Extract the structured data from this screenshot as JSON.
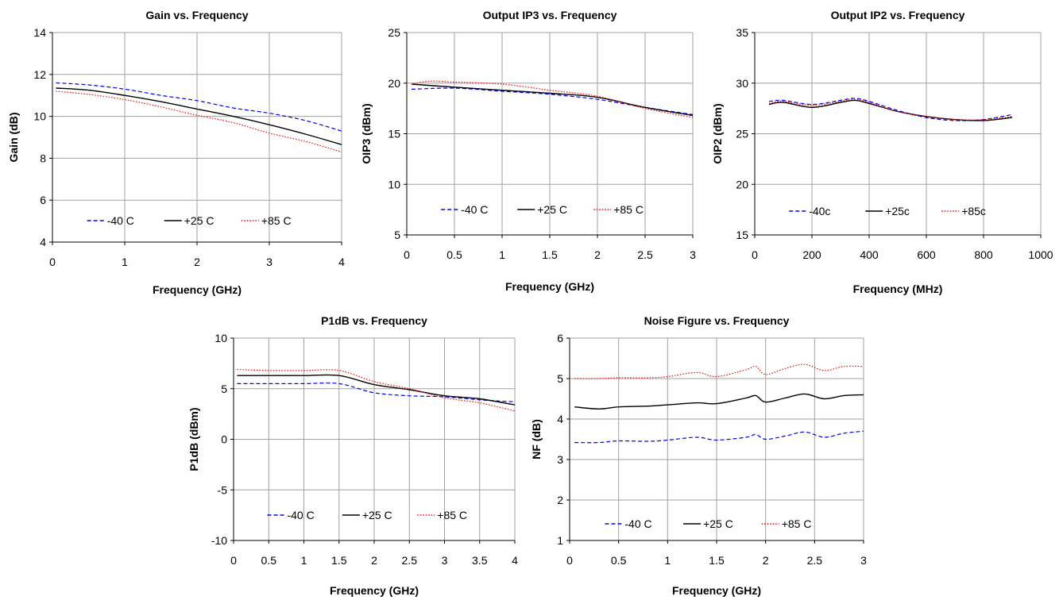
{
  "chart_data": [
    {
      "type": "line",
      "title": "Gain vs. Frequency",
      "xlabel": "Frequency (GHz)",
      "ylabel": "Gain (dB)",
      "xlim": [
        0,
        4
      ],
      "ylim": [
        4,
        14
      ],
      "xticks": [
        0,
        1,
        2,
        3,
        4
      ],
      "yticks": [
        4,
        6,
        8,
        10,
        12,
        14
      ],
      "grid": true,
      "legend": "bottom-inside",
      "series": [
        {
          "name": "-40 C",
          "color": "#0000ff",
          "dash": "dashed",
          "x": [
            0.05,
            0.5,
            1.0,
            1.5,
            2.0,
            2.5,
            3.0,
            3.5,
            4.0
          ],
          "y": [
            11.6,
            11.5,
            11.3,
            11.0,
            10.75,
            10.4,
            10.15,
            9.8,
            9.3
          ]
        },
        {
          "name": "+25 C",
          "color": "#000000",
          "dash": "solid",
          "x": [
            0.05,
            0.5,
            1.0,
            1.5,
            2.0,
            2.5,
            3.0,
            3.5,
            4.0
          ],
          "y": [
            11.35,
            11.25,
            11.0,
            10.7,
            10.35,
            10.0,
            9.6,
            9.15,
            8.65
          ]
        },
        {
          "name": "+85 C",
          "color": "#ff0000",
          "dash": "dotted",
          "x": [
            0.05,
            0.5,
            1.0,
            1.5,
            2.0,
            2.5,
            3.0,
            3.5,
            4.0
          ],
          "y": [
            11.2,
            11.05,
            10.8,
            10.45,
            10.05,
            9.7,
            9.2,
            8.8,
            8.3
          ]
        }
      ]
    },
    {
      "type": "line",
      "title": "Output IP3 vs. Frequency",
      "xlabel": "Frequency (GHz)",
      "ylabel": "OIP3 (dBm)",
      "xlim": [
        0,
        3
      ],
      "ylim": [
        5,
        25
      ],
      "xticks": [
        0,
        0.5,
        1,
        1.5,
        2,
        2.5,
        3
      ],
      "yticks": [
        5,
        10,
        15,
        20,
        25
      ],
      "grid": true,
      "legend": "bottom-inside",
      "series": [
        {
          "name": "-40 C",
          "color": "#0000ff",
          "dash": "dashed",
          "x": [
            0.05,
            0.5,
            1.0,
            1.5,
            2.0,
            2.5,
            3.0
          ],
          "y": [
            19.4,
            19.5,
            19.2,
            18.9,
            18.4,
            17.6,
            16.9
          ]
        },
        {
          "name": "+25 C",
          "color": "#000000",
          "dash": "solid",
          "x": [
            0.05,
            0.5,
            1.0,
            1.5,
            2.0,
            2.5,
            3.0
          ],
          "y": [
            19.9,
            19.6,
            19.3,
            19.0,
            18.6,
            17.6,
            16.8
          ]
        },
        {
          "name": "+85 C",
          "color": "#ff0000",
          "dash": "dotted",
          "x": [
            0.05,
            0.25,
            0.5,
            1.0,
            1.5,
            2.0,
            2.5,
            3.0
          ],
          "y": [
            19.9,
            20.2,
            20.1,
            19.9,
            19.3,
            18.7,
            17.5,
            16.6
          ]
        }
      ]
    },
    {
      "type": "line",
      "title": "Output IP2 vs. Frequency",
      "xlabel": "Frequency (MHz)",
      "ylabel": "OIP2 (dBm)",
      "xlim": [
        0,
        1000
      ],
      "ylim": [
        15,
        35
      ],
      "xticks": [
        0,
        200,
        400,
        600,
        800,
        1000
      ],
      "yticks": [
        15,
        20,
        25,
        30,
        35
      ],
      "grid": true,
      "legend": "bottom-inside",
      "series": [
        {
          "name": "-40c",
          "color": "#0000ff",
          "dash": "dashed",
          "x": [
            50,
            100,
            200,
            300,
            350,
            400,
            500,
            600,
            700,
            800,
            900
          ],
          "y": [
            28.2,
            28.3,
            27.9,
            28.3,
            28.5,
            28.2,
            27.3,
            26.6,
            26.3,
            26.4,
            26.9
          ]
        },
        {
          "name": "+25c",
          "color": "#000000",
          "dash": "solid",
          "x": [
            50,
            100,
            200,
            300,
            350,
            400,
            500,
            600,
            700,
            800,
            900
          ],
          "y": [
            27.9,
            28.1,
            27.6,
            28.1,
            28.3,
            28.0,
            27.2,
            26.7,
            26.4,
            26.3,
            26.6
          ]
        },
        {
          "name": "+85c",
          "color": "#ff0000",
          "dash": "dotted",
          "x": [
            50,
            100,
            200,
            300,
            350,
            400,
            500,
            600,
            700,
            800,
            900
          ],
          "y": [
            28.0,
            28.2,
            27.8,
            28.2,
            28.4,
            28.1,
            27.2,
            26.7,
            26.4,
            26.4,
            26.7
          ]
        }
      ]
    },
    {
      "type": "line",
      "title": "P1dB vs. Frequency",
      "xlabel": "Frequency (GHz)",
      "ylabel": "P1dB (dBm)",
      "xlim": [
        0,
        4
      ],
      "ylim": [
        -10,
        10
      ],
      "xticks": [
        0,
        0.5,
        1,
        1.5,
        2,
        2.5,
        3,
        3.5,
        4
      ],
      "yticks": [
        -10,
        -5,
        0,
        5,
        10
      ],
      "grid": true,
      "legend": "bottom-inside",
      "series": [
        {
          "name": "-40 C",
          "color": "#0000ff",
          "dash": "dashed",
          "x": [
            0.05,
            0.5,
            1.0,
            1.5,
            2.0,
            2.5,
            3.0,
            3.5,
            4.0
          ],
          "y": [
            5.5,
            5.5,
            5.5,
            5.5,
            4.6,
            4.3,
            4.2,
            3.9,
            3.7
          ]
        },
        {
          "name": "+25 C",
          "color": "#000000",
          "dash": "solid",
          "x": [
            0.05,
            0.5,
            1.0,
            1.5,
            2.0,
            2.5,
            3.0,
            3.5,
            4.0
          ],
          "y": [
            6.3,
            6.3,
            6.3,
            6.3,
            5.4,
            4.9,
            4.3,
            4.0,
            3.4
          ]
        },
        {
          "name": "+85 C",
          "color": "#ff0000",
          "dash": "dotted",
          "x": [
            0.05,
            0.5,
            1.0,
            1.5,
            2.0,
            2.5,
            3.0,
            3.5,
            4.0
          ],
          "y": [
            6.9,
            6.8,
            6.8,
            6.8,
            5.7,
            5.0,
            4.1,
            3.6,
            2.8
          ]
        }
      ]
    },
    {
      "type": "line",
      "title": "Noise Figure vs. Frequency",
      "xlabel": "Frequency (GHz)",
      "ylabel": "NF (dB)",
      "xlim": [
        0,
        3
      ],
      "ylim": [
        1,
        6
      ],
      "xticks": [
        0,
        0.5,
        1,
        1.5,
        2,
        2.5,
        3
      ],
      "yticks": [
        1,
        2,
        3,
        4,
        5,
        6
      ],
      "grid": true,
      "legend": "bottom-inside",
      "series": [
        {
          "name": "-40 C",
          "color": "#0000ff",
          "dash": "dashed",
          "x": [
            0.05,
            0.3,
            0.5,
            0.8,
            1.0,
            1.3,
            1.5,
            1.8,
            1.9,
            2.0,
            2.2,
            2.4,
            2.6,
            2.8,
            3.0
          ],
          "y": [
            3.42,
            3.42,
            3.46,
            3.45,
            3.48,
            3.55,
            3.48,
            3.55,
            3.62,
            3.5,
            3.58,
            3.68,
            3.55,
            3.65,
            3.7
          ]
        },
        {
          "name": "+25 C",
          "color": "#000000",
          "dash": "solid",
          "x": [
            0.05,
            0.3,
            0.5,
            0.8,
            1.0,
            1.3,
            1.5,
            1.8,
            1.9,
            2.0,
            2.2,
            2.4,
            2.6,
            2.8,
            3.0
          ],
          "y": [
            4.3,
            4.25,
            4.3,
            4.32,
            4.35,
            4.4,
            4.38,
            4.52,
            4.58,
            4.42,
            4.52,
            4.62,
            4.5,
            4.58,
            4.6
          ]
        },
        {
          "name": "+85 C",
          "color": "#ff0000",
          "dash": "dotted",
          "x": [
            0.05,
            0.3,
            0.5,
            0.8,
            1.0,
            1.3,
            1.5,
            1.8,
            1.9,
            2.0,
            2.2,
            2.4,
            2.6,
            2.8,
            3.0
          ],
          "y": [
            5.0,
            5.0,
            5.02,
            5.02,
            5.05,
            5.15,
            5.05,
            5.22,
            5.3,
            5.1,
            5.25,
            5.35,
            5.2,
            5.3,
            5.3
          ]
        }
      ]
    }
  ]
}
